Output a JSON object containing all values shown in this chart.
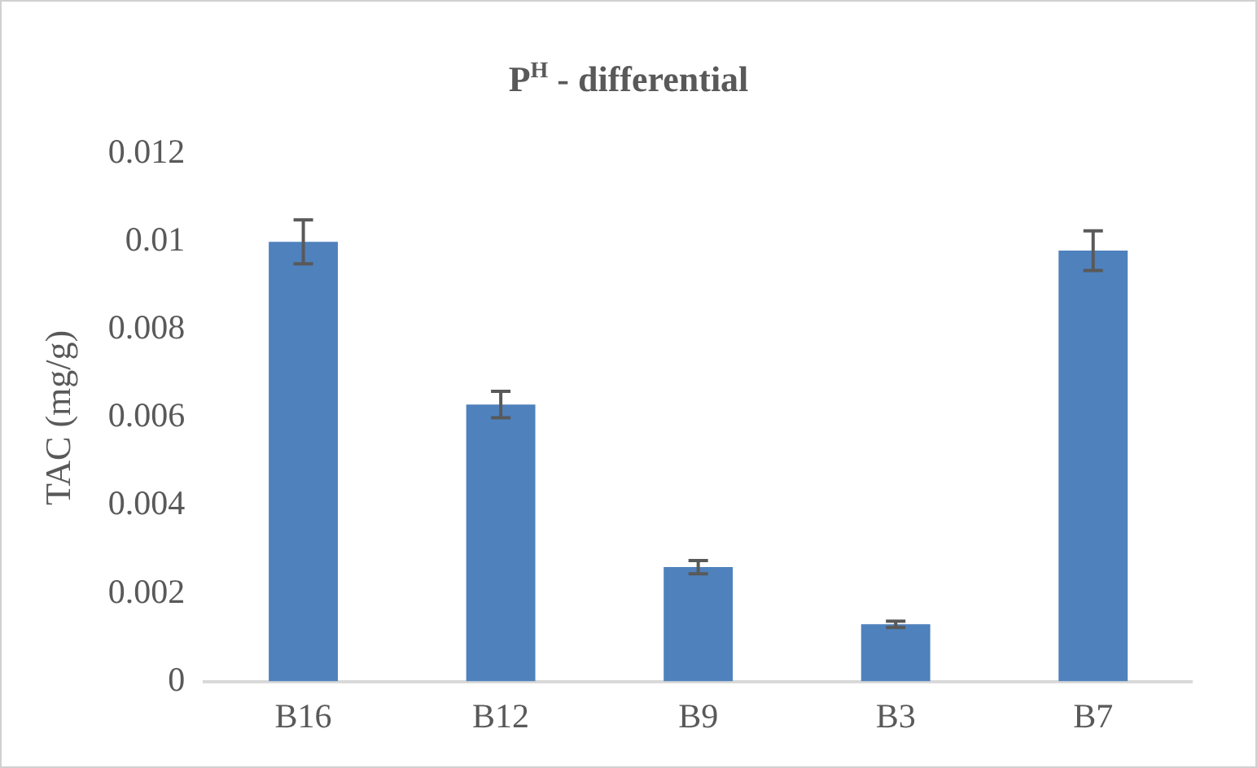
{
  "chart_data": {
    "type": "bar",
    "title": "P$^{H}$ - differential",
    "ylabel": "TAC (mg/g)",
    "categories": [
      "B16",
      "B12",
      "B9",
      "B3",
      "B7"
    ],
    "values": [
      0.01,
      0.0063,
      0.0026,
      0.0013,
      0.0098
    ],
    "errors": [
      0.0005,
      0.0003,
      0.00015,
      7e-05,
      0.00045
    ],
    "color": "#4f81bd",
    "ylim": [
      0,
      0.012
    ],
    "yticks": [
      0,
      0.002,
      0.004,
      0.006,
      0.008,
      0.01,
      0.012
    ],
    "grid": false,
    "legend": false
  }
}
